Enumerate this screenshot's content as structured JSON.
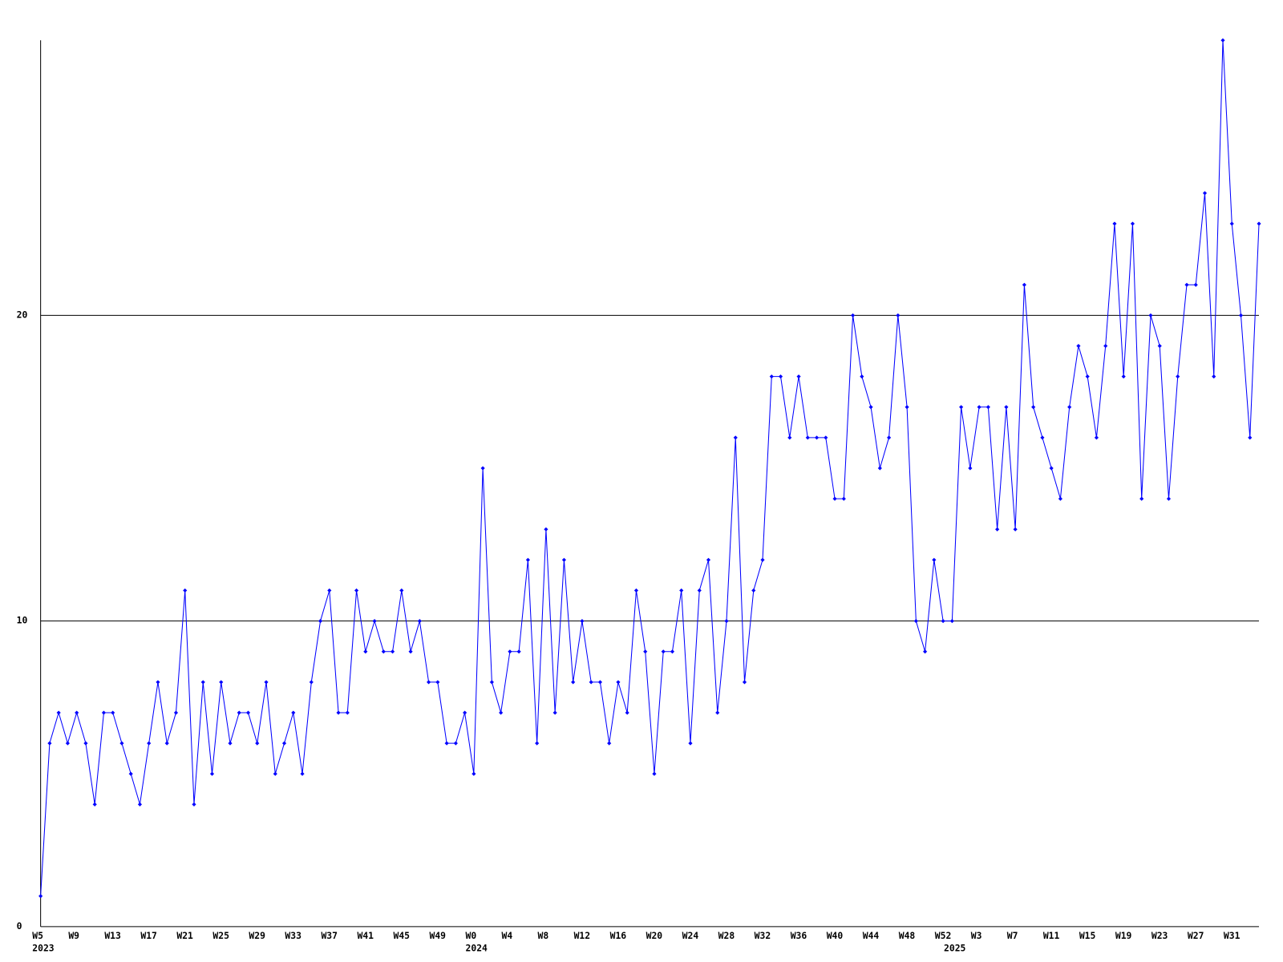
{
  "chart_data": {
    "type": "line",
    "categories": [
      "W5",
      null,
      null,
      null,
      "W9",
      null,
      null,
      null,
      "W13",
      null,
      null,
      null,
      "W17",
      null,
      null,
      null,
      "W21",
      null,
      null,
      null,
      "W25",
      null,
      null,
      null,
      "W29",
      null,
      null,
      null,
      "W33",
      null,
      null,
      null,
      "W37",
      null,
      null,
      null,
      "W41",
      null,
      null,
      null,
      "W45",
      null,
      null,
      null,
      "W49",
      null,
      null,
      null,
      "W0",
      null,
      null,
      null,
      "W4",
      null,
      null,
      null,
      "W8",
      null,
      null,
      null,
      "W12",
      null,
      null,
      null,
      "W16",
      null,
      null,
      null,
      "W20",
      null,
      null,
      null,
      "W24",
      null,
      null,
      null,
      "W28",
      null,
      null,
      null,
      "W32",
      null,
      null,
      null,
      "W36",
      null,
      null,
      null,
      "W40",
      null,
      null,
      null,
      "W44",
      null,
      null,
      null,
      "W48",
      null,
      null,
      null,
      "W52",
      null,
      null,
      null,
      "W3",
      null,
      null,
      null,
      "W7",
      null,
      null,
      null,
      "W11",
      null,
      null,
      null,
      "W15",
      null,
      null,
      null,
      "W19",
      null,
      null,
      null,
      "W23",
      null,
      null,
      null,
      "W27",
      null,
      null,
      null,
      "W31",
      null,
      null,
      null
    ],
    "year_labels": [
      "2023",
      null,
      null,
      null,
      null,
      null,
      null,
      null,
      null,
      null,
      null,
      null,
      null,
      null,
      null,
      null,
      null,
      null,
      null,
      null,
      null,
      null,
      null,
      null,
      null,
      null,
      null,
      null,
      null,
      null,
      null,
      null,
      null,
      null,
      null,
      null,
      null,
      null,
      null,
      null,
      null,
      null,
      null,
      null,
      null,
      null,
      null,
      null,
      "2024",
      null,
      null,
      null,
      null,
      null,
      null,
      null,
      null,
      null,
      null,
      null,
      null,
      null,
      null,
      null,
      null,
      null,
      null,
      null,
      null,
      null,
      null,
      null,
      null,
      null,
      null,
      null,
      null,
      null,
      null,
      null,
      null,
      null,
      null,
      null,
      null,
      null,
      null,
      null,
      null,
      null,
      null,
      null,
      null,
      null,
      null,
      null,
      null,
      null,
      null,
      null,
      null,
      "2025",
      null,
      null,
      null,
      null,
      null,
      null,
      null,
      null,
      null,
      null,
      null,
      null,
      null,
      null,
      null,
      null,
      null,
      null,
      null,
      null,
      null,
      null,
      null,
      null,
      null,
      null,
      null,
      null,
      null,
      null,
      null,
      null,
      null,
      null
    ],
    "series": [
      {
        "color": "#0000ff",
        "values": [
          1,
          6,
          7,
          6,
          7,
          6,
          4,
          7,
          7,
          6,
          5,
          4,
          6,
          8,
          6,
          7,
          11,
          4,
          8,
          5,
          8,
          6,
          7,
          7,
          6,
          8,
          5,
          6,
          7,
          5,
          8,
          10,
          11,
          7,
          7,
          11,
          9,
          10,
          9,
          9,
          11,
          9,
          10,
          8,
          8,
          6,
          6,
          7,
          5,
          15,
          8,
          7,
          9,
          9,
          12,
          6,
          13,
          7,
          12,
          8,
          10,
          8,
          8,
          6,
          8,
          7,
          11,
          9,
          5,
          9,
          9,
          11,
          6,
          11,
          12,
          7,
          10,
          16,
          8,
          11,
          12,
          18,
          18,
          16,
          18,
          16,
          16,
          16,
          14,
          14,
          20,
          18,
          17,
          15,
          16,
          20,
          17,
          10,
          9,
          12,
          10,
          10,
          17,
          15,
          17,
          17,
          13,
          17,
          13,
          21,
          17,
          16,
          15,
          14,
          17,
          19,
          18,
          16,
          19,
          23,
          18,
          23,
          14,
          20,
          19,
          14,
          18,
          21,
          21,
          24,
          18,
          29,
          23,
          20,
          16,
          23
        ]
      }
    ],
    "ylim": [
      0,
      29
    ],
    "yticks": [
      0,
      10,
      20
    ],
    "grid": true
  }
}
